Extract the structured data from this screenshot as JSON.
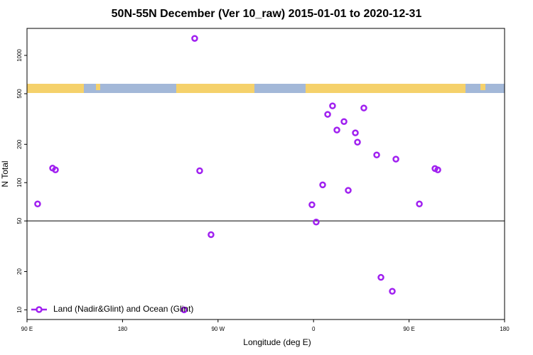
{
  "chart_data": {
    "type": "scatter",
    "title": "50N-55N December (Ver 10_raw)   2015-01-01 to 2020-12-31",
    "x_label": "Longitude (deg E)",
    "y_label": "N Total",
    "xlim": [
      90,
      540
    ],
    "xticks": [
      {
        "value": 90,
        "label": "90 E"
      },
      180,
      {
        "value": 270,
        "label": "90 W"
      },
      {
        "value": 360,
        "label": "0"
      },
      {
        "value": 450,
        "label": "90 E"
      },
      {
        "value": 540,
        "label": "180"
      }
    ],
    "ylim": [
      8.4,
      1630
    ],
    "y_scale": "log",
    "yticks": [
      10,
      20,
      50,
      100,
      200,
      500,
      1000
    ],
    "reference_line": 50,
    "legend_position": "bottomleft",
    "series": [
      {
        "name": "Land (Nadir&Glint) and Ocean (Glint)",
        "color": "#a020f0",
        "x": [
          100.0,
          114.1,
          116.8,
          248.0,
          252.7,
          263.4,
          238.0,
          358.5,
          362.5,
          368.6,
          373.3,
          377.9,
          382.0,
          388.7,
          392.7,
          399.4,
          401.4,
          407.4,
          419.5,
          423.5,
          434.2,
          437.6,
          459.7,
          474.4,
          477.1
        ],
        "values": [
          68,
          130,
          126,
          1360,
          124,
          39,
          10,
          67,
          49,
          96,
          344,
          401,
          259,
          302,
          87,
          246,
          208,
          386,
          165,
          18,
          14,
          153,
          68,
          129,
          126
        ]
      }
    ]
  }
}
